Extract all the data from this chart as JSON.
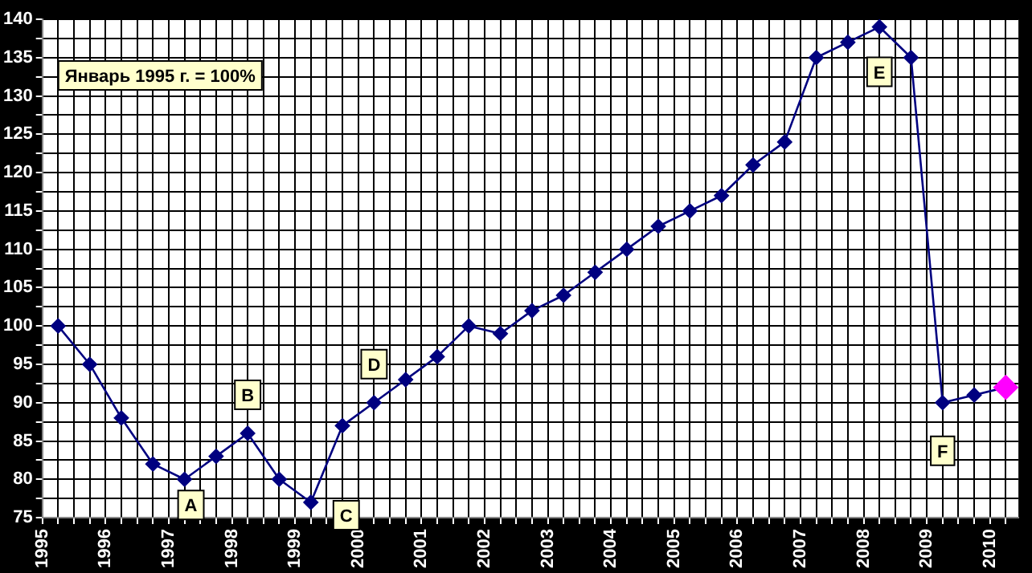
{
  "chart_data": {
    "type": "line",
    "x": [
      1995.25,
      1995.75,
      1996.25,
      1996.75,
      1997.25,
      1997.75,
      1998.25,
      1998.75,
      1999.25,
      1999.75,
      2000.25,
      2000.75,
      2001.25,
      2001.75,
      2002.25,
      2002.75,
      2003.25,
      2003.75,
      2004.25,
      2004.75,
      2005.25,
      2005.75,
      2006.25,
      2006.75,
      2007.25,
      2007.75,
      2008.25,
      2008.75,
      2009.25,
      2009.75,
      2010.25
    ],
    "series": [
      {
        "color": "#000080",
        "colors": [
          "#000080",
          "#000080",
          "#000080",
          "#000080",
          "#000080",
          "#000080",
          "#000080",
          "#000080",
          "#000080",
          "#000080",
          "#000080",
          "#000080",
          "#000080",
          "#000080",
          "#000080",
          "#000080",
          "#000080",
          "#000080",
          "#000080",
          "#000080",
          "#000080",
          "#000080",
          "#000080",
          "#000080",
          "#000080",
          "#000080",
          "#000080",
          "#000080",
          "#000080",
          "#000080",
          "#ff00ff"
        ],
        "values": [
          100,
          95,
          88,
          82,
          80,
          83,
          86,
          80,
          77,
          87,
          90,
          93,
          96,
          100,
          99,
          102,
          104,
          107,
          110,
          113,
          115,
          117,
          121,
          124,
          135,
          137,
          139,
          135,
          90,
          91,
          92
        ]
      }
    ],
    "xlim": [
      1995,
      2010.45
    ],
    "xticks": [
      1995,
      {
        "value": 1995.25,
        "label": null
      },
      {
        "value": 1995.5,
        "label": null
      },
      {
        "value": 1995.75,
        "label": null
      },
      1996,
      {
        "value": 1996.25,
        "label": null
      },
      {
        "value": 1996.5,
        "label": null
      },
      {
        "value": 1996.75,
        "label": null
      },
      1997,
      {
        "value": 1997.25,
        "label": null
      },
      {
        "value": 1997.5,
        "label": null
      },
      {
        "value": 1997.75,
        "label": null
      },
      1998,
      {
        "value": 1998.25,
        "label": null
      },
      {
        "value": 1998.5,
        "label": null
      },
      {
        "value": 1998.75,
        "label": null
      },
      1999,
      {
        "value": 1999.25,
        "label": null
      },
      {
        "value": 1999.5,
        "label": null
      },
      {
        "value": 1999.75,
        "label": null
      },
      2000,
      {
        "value": 2000.25,
        "label": null
      },
      {
        "value": 2000.5,
        "label": null
      },
      {
        "value": 2000.75,
        "label": null
      },
      2001,
      {
        "value": 2001.25,
        "label": null
      },
      {
        "value": 2001.5,
        "label": null
      },
      {
        "value": 2001.75,
        "label": null
      },
      2002,
      {
        "value": 2002.25,
        "label": null
      },
      {
        "value": 2002.5,
        "label": null
      },
      {
        "value": 2002.75,
        "label": null
      },
      2003,
      {
        "value": 2003.25,
        "label": null
      },
      {
        "value": 2003.5,
        "label": null
      },
      {
        "value": 2003.75,
        "label": null
      },
      2004,
      {
        "value": 2004.25,
        "label": null
      },
      {
        "value": 2004.5,
        "label": null
      },
      {
        "value": 2004.75,
        "label": null
      },
      2005,
      {
        "value": 2005.25,
        "label": null
      },
      {
        "value": 2005.5,
        "label": null
      },
      {
        "value": 2005.75,
        "label": null
      },
      2006,
      {
        "value": 2006.25,
        "label": null
      },
      {
        "value": 2006.5,
        "label": null
      },
      {
        "value": 2006.75,
        "label": null
      },
      2007,
      {
        "value": 2007.25,
        "label": null
      },
      {
        "value": 2007.5,
        "label": null
      },
      {
        "value": 2007.75,
        "label": null
      },
      2008,
      {
        "value": 2008.25,
        "label": null
      },
      {
        "value": 2008.5,
        "label": null
      },
      {
        "value": 2008.75,
        "label": null
      },
      2009,
      {
        "value": 2009.25,
        "label": null
      },
      {
        "value": 2009.5,
        "label": null
      },
      {
        "value": 2009.75,
        "label": null
      },
      2010,
      {
        "value": 2010.25,
        "label": null
      }
    ],
    "ylim": [
      75,
      140
    ],
    "yticks": [
      75,
      {
        "value": 77.5,
        "label": null
      },
      80,
      {
        "value": 82.5,
        "label": null
      },
      85,
      {
        "value": 87.5,
        "label": null
      },
      90,
      {
        "value": 92.5,
        "label": null
      },
      95,
      {
        "value": 97.5,
        "label": null
      },
      100,
      {
        "value": 102.5,
        "label": null
      },
      105,
      {
        "value": 107.5,
        "label": null
      },
      110,
      {
        "value": 112.5,
        "label": null
      },
      115,
      {
        "value": 117.5,
        "label": null
      },
      120,
      {
        "value": 122.5,
        "label": null
      },
      125,
      {
        "value": 127.5,
        "label": null
      },
      130,
      {
        "value": 132.5,
        "label": null
      },
      135,
      {
        "value": 137.5,
        "label": null
      },
      140
    ],
    "grid": true,
    "legend": false,
    "marker": "diamond",
    "line_style": "solid",
    "annotations": [
      "Январь 1995 г. = 100%",
      {
        "text": "A",
        "x": 1997.25,
        "y": 80
      },
      {
        "text": "B",
        "x": 1998.25,
        "y": 86
      },
      {
        "text": "C",
        "x": 1999.25,
        "y": 77
      },
      {
        "text": "D",
        "x": 2000.25,
        "y": 90
      },
      {
        "text": "E",
        "x": 2008.25,
        "y": 139
      },
      {
        "text": "F",
        "x": 2009.25,
        "y": 90
      }
    ]
  }
}
